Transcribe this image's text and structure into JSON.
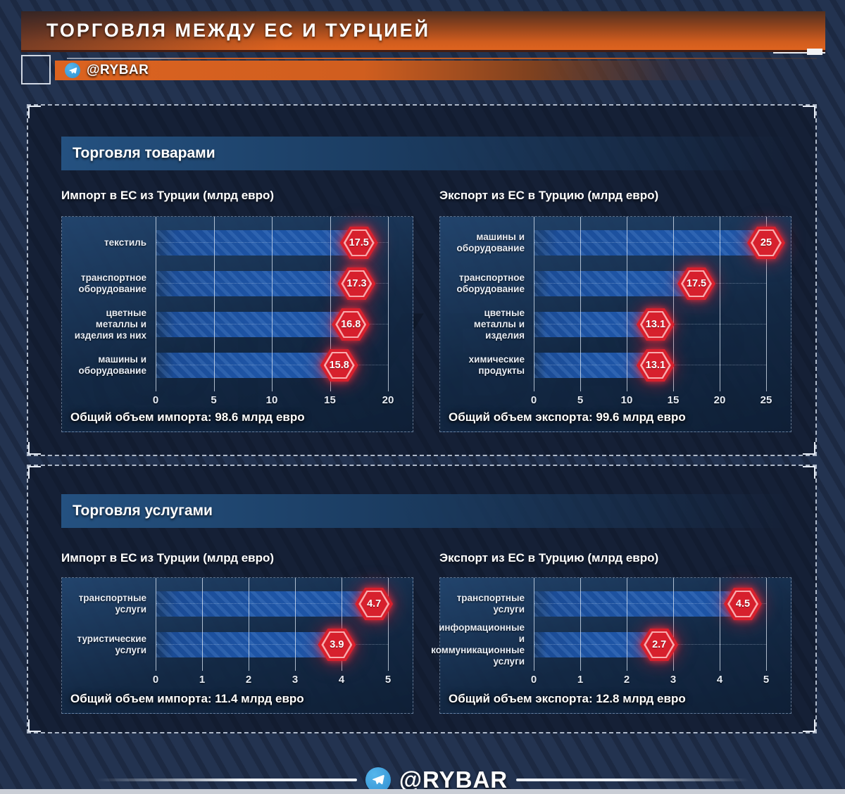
{
  "header": {
    "title": "ТОРГОВЛЯ МЕЖДУ ЕС И ТУРЦИЕЙ",
    "channel_badge": "@RYBAR"
  },
  "watermark": "@RYBAR",
  "footer": {
    "channel": "@RYBAR"
  },
  "icons": {
    "header_channel": "telegram-paper-plane-icon",
    "footer_channel": "telegram-paper-plane-icon"
  },
  "colors": {
    "background_navy": "#233350",
    "panel_navy": "#0b1424",
    "card_blue": "#1b3a5f",
    "bar_blue": "#1e55a6",
    "badge_red": "#d7202d",
    "grid_line": "#e2ecf8",
    "accent_orange": "#d95f1e",
    "telegram_blue": "#36a0e0",
    "bottom_strip": "#c9cdd5"
  },
  "sections": [
    {
      "title": "Торговля товарами"
    },
    {
      "title": "Торговля услугами"
    }
  ],
  "chart_data": [
    {
      "section": "Торговля товарами",
      "title": "Импорт в ЕС из Турции (млрд евро)",
      "type": "bar",
      "orientation": "horizontal",
      "categories": [
        "текстиль",
        "транспортное оборудование",
        "цветные металлы и изделия из них",
        "машины и оборудование"
      ],
      "values": [
        17.5,
        17.3,
        16.8,
        15.8
      ],
      "xlim": [
        0,
        20
      ],
      "ticks": [
        0,
        5,
        10,
        15,
        20
      ],
      "unit": "млрд евро",
      "total_label": "Общий объем импорта: 98.6 млрд евро"
    },
    {
      "section": "Торговля товарами",
      "title": "Экспорт из ЕС в Турцию (млрд евро)",
      "type": "bar",
      "orientation": "horizontal",
      "categories": [
        "машины и оборудование",
        "транспортное оборудование",
        "цветные металлы и изделия",
        "химические продукты"
      ],
      "values": [
        25,
        17.5,
        13.1,
        13.1
      ],
      "xlim": [
        0,
        25
      ],
      "ticks": [
        0,
        5,
        10,
        15,
        20,
        25
      ],
      "unit": "млрд евро",
      "total_label": "Общий объем экспорта: 99.6 млрд евро"
    },
    {
      "section": "Торговля услугами",
      "title": "Импорт в ЕС из Турции (млрд евро)",
      "type": "bar",
      "orientation": "horizontal",
      "categories": [
        "транспортные услуги",
        "туристические услуги"
      ],
      "values": [
        4.7,
        3.9
      ],
      "xlim": [
        0,
        5
      ],
      "ticks": [
        0,
        1,
        2,
        3,
        4,
        5
      ],
      "unit": "млрд евро",
      "total_label": "Общий объем импорта: 11.4 млрд евро"
    },
    {
      "section": "Торговля услугами",
      "title": "Экспорт из ЕС в Турцию (млрд евро)",
      "type": "bar",
      "orientation": "horizontal",
      "categories": [
        "транспортные услуги",
        "информационные и коммуникационные услуги"
      ],
      "values": [
        4.5,
        2.7
      ],
      "xlim": [
        0,
        5
      ],
      "ticks": [
        0,
        1,
        2,
        3,
        4,
        5
      ],
      "unit": "млрд евро",
      "total_label": "Общий объем экспорта: 12.8 млрд евро"
    }
  ]
}
